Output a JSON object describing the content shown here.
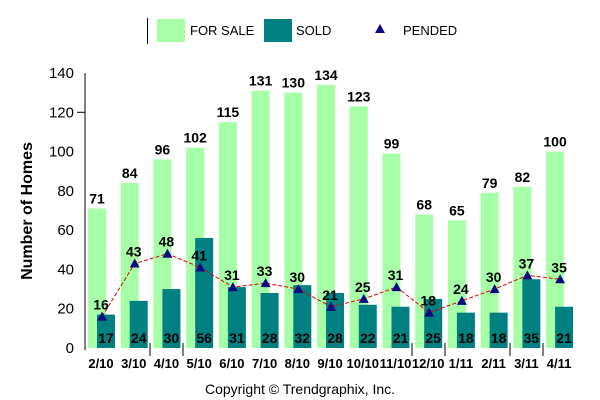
{
  "chart_data": {
    "type": "bar",
    "title": "",
    "xlabel": "",
    "ylabel": "Number of Homes",
    "ylim": [
      0,
      140
    ],
    "yticks": [
      0,
      20,
      40,
      60,
      80,
      100,
      120,
      140
    ],
    "grid": false,
    "legend_position": "top",
    "categories": [
      "2/10",
      "3/10",
      "4/10",
      "5/10",
      "6/10",
      "7/10",
      "8/10",
      "9/10",
      "10/10",
      "11/10",
      "12/10",
      "1/11",
      "2/11",
      "3/11",
      "4/11"
    ],
    "series": [
      {
        "name": "FOR SALE",
        "kind": "bar",
        "color": "#a6ffa6",
        "values": [
          71,
          84,
          96,
          102,
          115,
          131,
          130,
          134,
          123,
          99,
          68,
          65,
          79,
          82,
          100
        ]
      },
      {
        "name": "SOLD",
        "kind": "bar",
        "color": "#008080",
        "values": [
          17,
          24,
          30,
          56,
          31,
          28,
          32,
          28,
          22,
          21,
          25,
          18,
          18,
          35,
          21
        ]
      },
      {
        "name": "PENDED",
        "kind": "line-marker",
        "color": "#0a0a80",
        "line_color": "#e00000",
        "values": [
          16,
          43,
          48,
          41,
          31,
          33,
          30,
          21,
          25,
          31,
          18,
          24,
          30,
          37,
          35
        ]
      }
    ]
  },
  "legend": {
    "for_sale": "FOR SALE",
    "sold": "SOLD",
    "pended": "PENDED"
  },
  "footer": {
    "copyright": "Copyright © Trendgraphix, Inc."
  }
}
